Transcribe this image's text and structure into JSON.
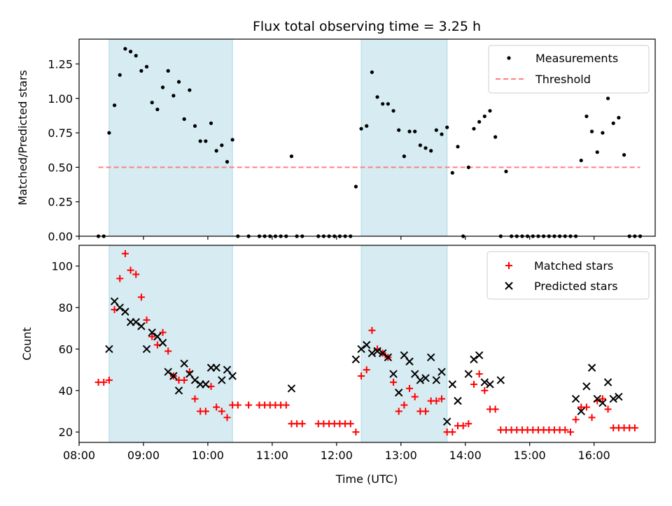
{
  "chart_data": [
    {
      "type": "scatter",
      "title": "Flux total observing time = 3.25 h",
      "ylabel": "Matched/Predicted stars",
      "xlim": [
        "08:00",
        "16:57"
      ],
      "ylim": [
        0,
        1.43
      ],
      "yticks": [
        "0.00",
        "0.25",
        "0.50",
        "0.75",
        "1.00",
        "1.25"
      ],
      "legend_position": "top-right",
      "shaded_intervals": [
        [
          "08:28",
          "10:23"
        ],
        [
          "12:23",
          "13:43"
        ]
      ],
      "series": [
        {
          "name": "Measurements",
          "marker": "dot",
          "color": "#000000",
          "points": [
            [
              "08:18",
              0
            ],
            [
              "08:23",
              0
            ],
            [
              "08:28",
              0.75
            ],
            [
              "08:33",
              0.95
            ],
            [
              "08:38",
              1.17
            ],
            [
              "08:43",
              1.36
            ],
            [
              "08:48",
              1.34
            ],
            [
              "08:53",
              1.31
            ],
            [
              "08:58",
              1.2
            ],
            [
              "09:03",
              1.23
            ],
            [
              "09:08",
              0.97
            ],
            [
              "09:13",
              0.92
            ],
            [
              "09:18",
              1.08
            ],
            [
              "09:23",
              1.2
            ],
            [
              "09:28",
              1.02
            ],
            [
              "09:33",
              1.12
            ],
            [
              "09:38",
              0.85
            ],
            [
              "09:43",
              1.06
            ],
            [
              "09:48",
              0.8
            ],
            [
              "09:53",
              0.69
            ],
            [
              "09:58",
              0.69
            ],
            [
              "10:03",
              0.82
            ],
            [
              "10:08",
              0.62
            ],
            [
              "10:13",
              0.66
            ],
            [
              "10:18",
              0.54
            ],
            [
              "10:23",
              0.7
            ],
            [
              "10:28",
              0
            ],
            [
              "10:38",
              0
            ],
            [
              "10:48",
              0
            ],
            [
              "10:53",
              0
            ],
            [
              "10:58",
              0
            ],
            [
              "11:03",
              0
            ],
            [
              "11:08",
              0
            ],
            [
              "11:13",
              0
            ],
            [
              "11:18",
              0.58
            ],
            [
              "11:23",
              0
            ],
            [
              "11:28",
              0
            ],
            [
              "11:43",
              0
            ],
            [
              "11:48",
              0
            ],
            [
              "11:53",
              0
            ],
            [
              "11:58",
              0
            ],
            [
              "12:03",
              0
            ],
            [
              "12:08",
              0
            ],
            [
              "12:13",
              0
            ],
            [
              "12:18",
              0.36
            ],
            [
              "12:23",
              0.78
            ],
            [
              "12:28",
              0.8
            ],
            [
              "12:33",
              1.19
            ],
            [
              "12:38",
              1.01
            ],
            [
              "12:43",
              0.96
            ],
            [
              "12:48",
              0.96
            ],
            [
              "12:53",
              0.91
            ],
            [
              "12:58",
              0.77
            ],
            [
              "13:03",
              0.58
            ],
            [
              "13:08",
              0.76
            ],
            [
              "13:13",
              0.76
            ],
            [
              "13:18",
              0.66
            ],
            [
              "13:23",
              0.64
            ],
            [
              "13:28",
              0.62
            ],
            [
              "13:33",
              0.77
            ],
            [
              "13:38",
              0.74
            ],
            [
              "13:43",
              0.79
            ],
            [
              "13:48",
              0.46
            ],
            [
              "13:53",
              0.65
            ],
            [
              "13:58",
              0
            ],
            [
              "14:03",
              0.5
            ],
            [
              "14:08",
              0.78
            ],
            [
              "14:13",
              0.83
            ],
            [
              "14:18",
              0.87
            ],
            [
              "14:23",
              0.91
            ],
            [
              "14:28",
              0.72
            ],
            [
              "14:33",
              0
            ],
            [
              "14:38",
              0.47
            ],
            [
              "14:43",
              0
            ],
            [
              "14:48",
              0
            ],
            [
              "14:53",
              0
            ],
            [
              "14:58",
              0
            ],
            [
              "15:03",
              0
            ],
            [
              "15:08",
              0
            ],
            [
              "15:13",
              0
            ],
            [
              "15:18",
              0
            ],
            [
              "15:23",
              0
            ],
            [
              "15:28",
              0
            ],
            [
              "15:33",
              0
            ],
            [
              "15:38",
              0
            ],
            [
              "15:43",
              0
            ],
            [
              "15:48",
              0.55
            ],
            [
              "15:53",
              0.87
            ],
            [
              "15:58",
              0.76
            ],
            [
              "16:03",
              0.61
            ],
            [
              "16:08",
              0.75
            ],
            [
              "16:13",
              1.0
            ],
            [
              "16:18",
              0.82
            ],
            [
              "16:23",
              0.86
            ],
            [
              "16:28",
              0.59
            ],
            [
              "16:33",
              0
            ],
            [
              "16:38",
              0
            ],
            [
              "16:43",
              0
            ]
          ]
        },
        {
          "name": "Threshold",
          "marker": "dashed-line",
          "color": "#ff7f7f",
          "points": [
            [
              "08:18",
              0.5
            ],
            [
              "16:43",
              0.5
            ]
          ]
        }
      ]
    },
    {
      "type": "scatter",
      "xlabel": "Time (UTC)",
      "ylabel": "Count",
      "xlim": [
        "08:00",
        "16:57"
      ],
      "ylim": [
        15,
        110
      ],
      "xticks": [
        "08:00",
        "09:00",
        "10:00",
        "11:00",
        "12:00",
        "13:00",
        "14:00",
        "15:00",
        "16:00"
      ],
      "yticks": [
        "20",
        "40",
        "60",
        "80",
        "100"
      ],
      "legend_position": "top-right",
      "shaded_intervals": [
        [
          "08:28",
          "10:23"
        ],
        [
          "12:23",
          "13:43"
        ]
      ],
      "series": [
        {
          "name": "Matched stars",
          "marker": "plus",
          "color": "#ff0000",
          "points": [
            [
              "08:18",
              44
            ],
            [
              "08:23",
              44
            ],
            [
              "08:28",
              45
            ],
            [
              "08:33",
              79
            ],
            [
              "08:38",
              94
            ],
            [
              "08:43",
              106
            ],
            [
              "08:48",
              98
            ],
            [
              "08:53",
              96
            ],
            [
              "08:58",
              85
            ],
            [
              "09:03",
              74
            ],
            [
              "09:08",
              66
            ],
            [
              "09:13",
              62
            ],
            [
              "09:18",
              68
            ],
            [
              "09:23",
              59
            ],
            [
              "09:28",
              47
            ],
            [
              "09:33",
              45
            ],
            [
              "09:38",
              45
            ],
            [
              "09:43",
              49
            ],
            [
              "09:48",
              36
            ],
            [
              "09:53",
              30
            ],
            [
              "09:58",
              30
            ],
            [
              "10:03",
              42
            ],
            [
              "10:08",
              32
            ],
            [
              "10:13",
              30
            ],
            [
              "10:18",
              27
            ],
            [
              "10:23",
              33
            ],
            [
              "10:28",
              33
            ],
            [
              "10:38",
              33
            ],
            [
              "10:48",
              33
            ],
            [
              "10:53",
              33
            ],
            [
              "10:58",
              33
            ],
            [
              "11:03",
              33
            ],
            [
              "11:08",
              33
            ],
            [
              "11:13",
              33
            ],
            [
              "11:18",
              24
            ],
            [
              "11:23",
              24
            ],
            [
              "11:28",
              24
            ],
            [
              "11:43",
              24
            ],
            [
              "11:48",
              24
            ],
            [
              "11:53",
              24
            ],
            [
              "11:58",
              24
            ],
            [
              "12:03",
              24
            ],
            [
              "12:08",
              24
            ],
            [
              "12:13",
              24
            ],
            [
              "12:18",
              20
            ],
            [
              "12:23",
              47
            ],
            [
              "12:28",
              50
            ],
            [
              "12:33",
              69
            ],
            [
              "12:38",
              60
            ],
            [
              "12:43",
              58
            ],
            [
              "12:48",
              56
            ],
            [
              "12:53",
              44
            ],
            [
              "12:58",
              30
            ],
            [
              "13:03",
              33
            ],
            [
              "13:08",
              41
            ],
            [
              "13:13",
              37
            ],
            [
              "13:18",
              30
            ],
            [
              "13:23",
              30
            ],
            [
              "13:28",
              35
            ],
            [
              "13:33",
              35
            ],
            [
              "13:38",
              36
            ],
            [
              "13:43",
              20
            ],
            [
              "13:48",
              20
            ],
            [
              "13:53",
              23
            ],
            [
              "13:58",
              23
            ],
            [
              "14:03",
              24
            ],
            [
              "14:08",
              43
            ],
            [
              "14:13",
              48
            ],
            [
              "14:18",
              40
            ],
            [
              "14:23",
              31
            ],
            [
              "14:28",
              31
            ],
            [
              "14:33",
              21
            ],
            [
              "14:38",
              21
            ],
            [
              "14:43",
              21
            ],
            [
              "14:48",
              21
            ],
            [
              "14:53",
              21
            ],
            [
              "14:58",
              21
            ],
            [
              "15:03",
              21
            ],
            [
              "15:08",
              21
            ],
            [
              "15:13",
              21
            ],
            [
              "15:18",
              21
            ],
            [
              "15:23",
              21
            ],
            [
              "15:28",
              21
            ],
            [
              "15:33",
              21
            ],
            [
              "15:38",
              20
            ],
            [
              "15:43",
              26
            ],
            [
              "15:48",
              32
            ],
            [
              "15:53",
              32
            ],
            [
              "15:58",
              27
            ],
            [
              "16:03",
              35
            ],
            [
              "16:08",
              36
            ],
            [
              "16:13",
              31
            ],
            [
              "16:18",
              22
            ],
            [
              "16:23",
              22
            ],
            [
              "16:28",
              22
            ],
            [
              "16:33",
              22
            ],
            [
              "16:38",
              22
            ]
          ]
        },
        {
          "name": "Predicted stars",
          "marker": "x",
          "color": "#000000",
          "points": [
            [
              "08:28",
              60
            ],
            [
              "08:33",
              83
            ],
            [
              "08:38",
              80
            ],
            [
              "08:43",
              78
            ],
            [
              "08:48",
              73
            ],
            [
              "08:53",
              73
            ],
            [
              "08:58",
              71
            ],
            [
              "09:03",
              60
            ],
            [
              "09:08",
              68
            ],
            [
              "09:13",
              66
            ],
            [
              "09:18",
              63
            ],
            [
              "09:23",
              49
            ],
            [
              "09:28",
              47
            ],
            [
              "09:33",
              40
            ],
            [
              "09:38",
              53
            ],
            [
              "09:43",
              48
            ],
            [
              "09:48",
              45
            ],
            [
              "09:53",
              43
            ],
            [
              "09:58",
              43
            ],
            [
              "10:03",
              51
            ],
            [
              "10:08",
              51
            ],
            [
              "10:13",
              45
            ],
            [
              "10:18",
              50
            ],
            [
              "10:23",
              47
            ],
            [
              "11:18",
              41
            ],
            [
              "12:18",
              55
            ],
            [
              "12:23",
              60
            ],
            [
              "12:28",
              62
            ],
            [
              "12:33",
              58
            ],
            [
              "12:38",
              59
            ],
            [
              "12:43",
              58
            ],
            [
              "12:48",
              56
            ],
            [
              "12:53",
              48
            ],
            [
              "12:58",
              39
            ],
            [
              "13:03",
              57
            ],
            [
              "13:08",
              54
            ],
            [
              "13:13",
              48
            ],
            [
              "13:18",
              45
            ],
            [
              "13:23",
              46
            ],
            [
              "13:28",
              56
            ],
            [
              "13:33",
              45
            ],
            [
              "13:38",
              49
            ],
            [
              "13:43",
              25
            ],
            [
              "13:48",
              43
            ],
            [
              "13:53",
              35
            ],
            [
              "13:58",
              null
            ],
            [
              "14:03",
              48
            ],
            [
              "14:08",
              55
            ],
            [
              "14:13",
              57
            ],
            [
              "14:18",
              44
            ],
            [
              "14:23",
              43
            ],
            [
              "14:33",
              45
            ],
            [
              "15:43",
              36
            ],
            [
              "15:48",
              30
            ],
            [
              "15:53",
              42
            ],
            [
              "15:58",
              51
            ],
            [
              "16:03",
              36
            ],
            [
              "16:08",
              34
            ],
            [
              "16:13",
              44
            ],
            [
              "16:18",
              36
            ],
            [
              "16:23",
              37
            ]
          ]
        }
      ]
    }
  ]
}
